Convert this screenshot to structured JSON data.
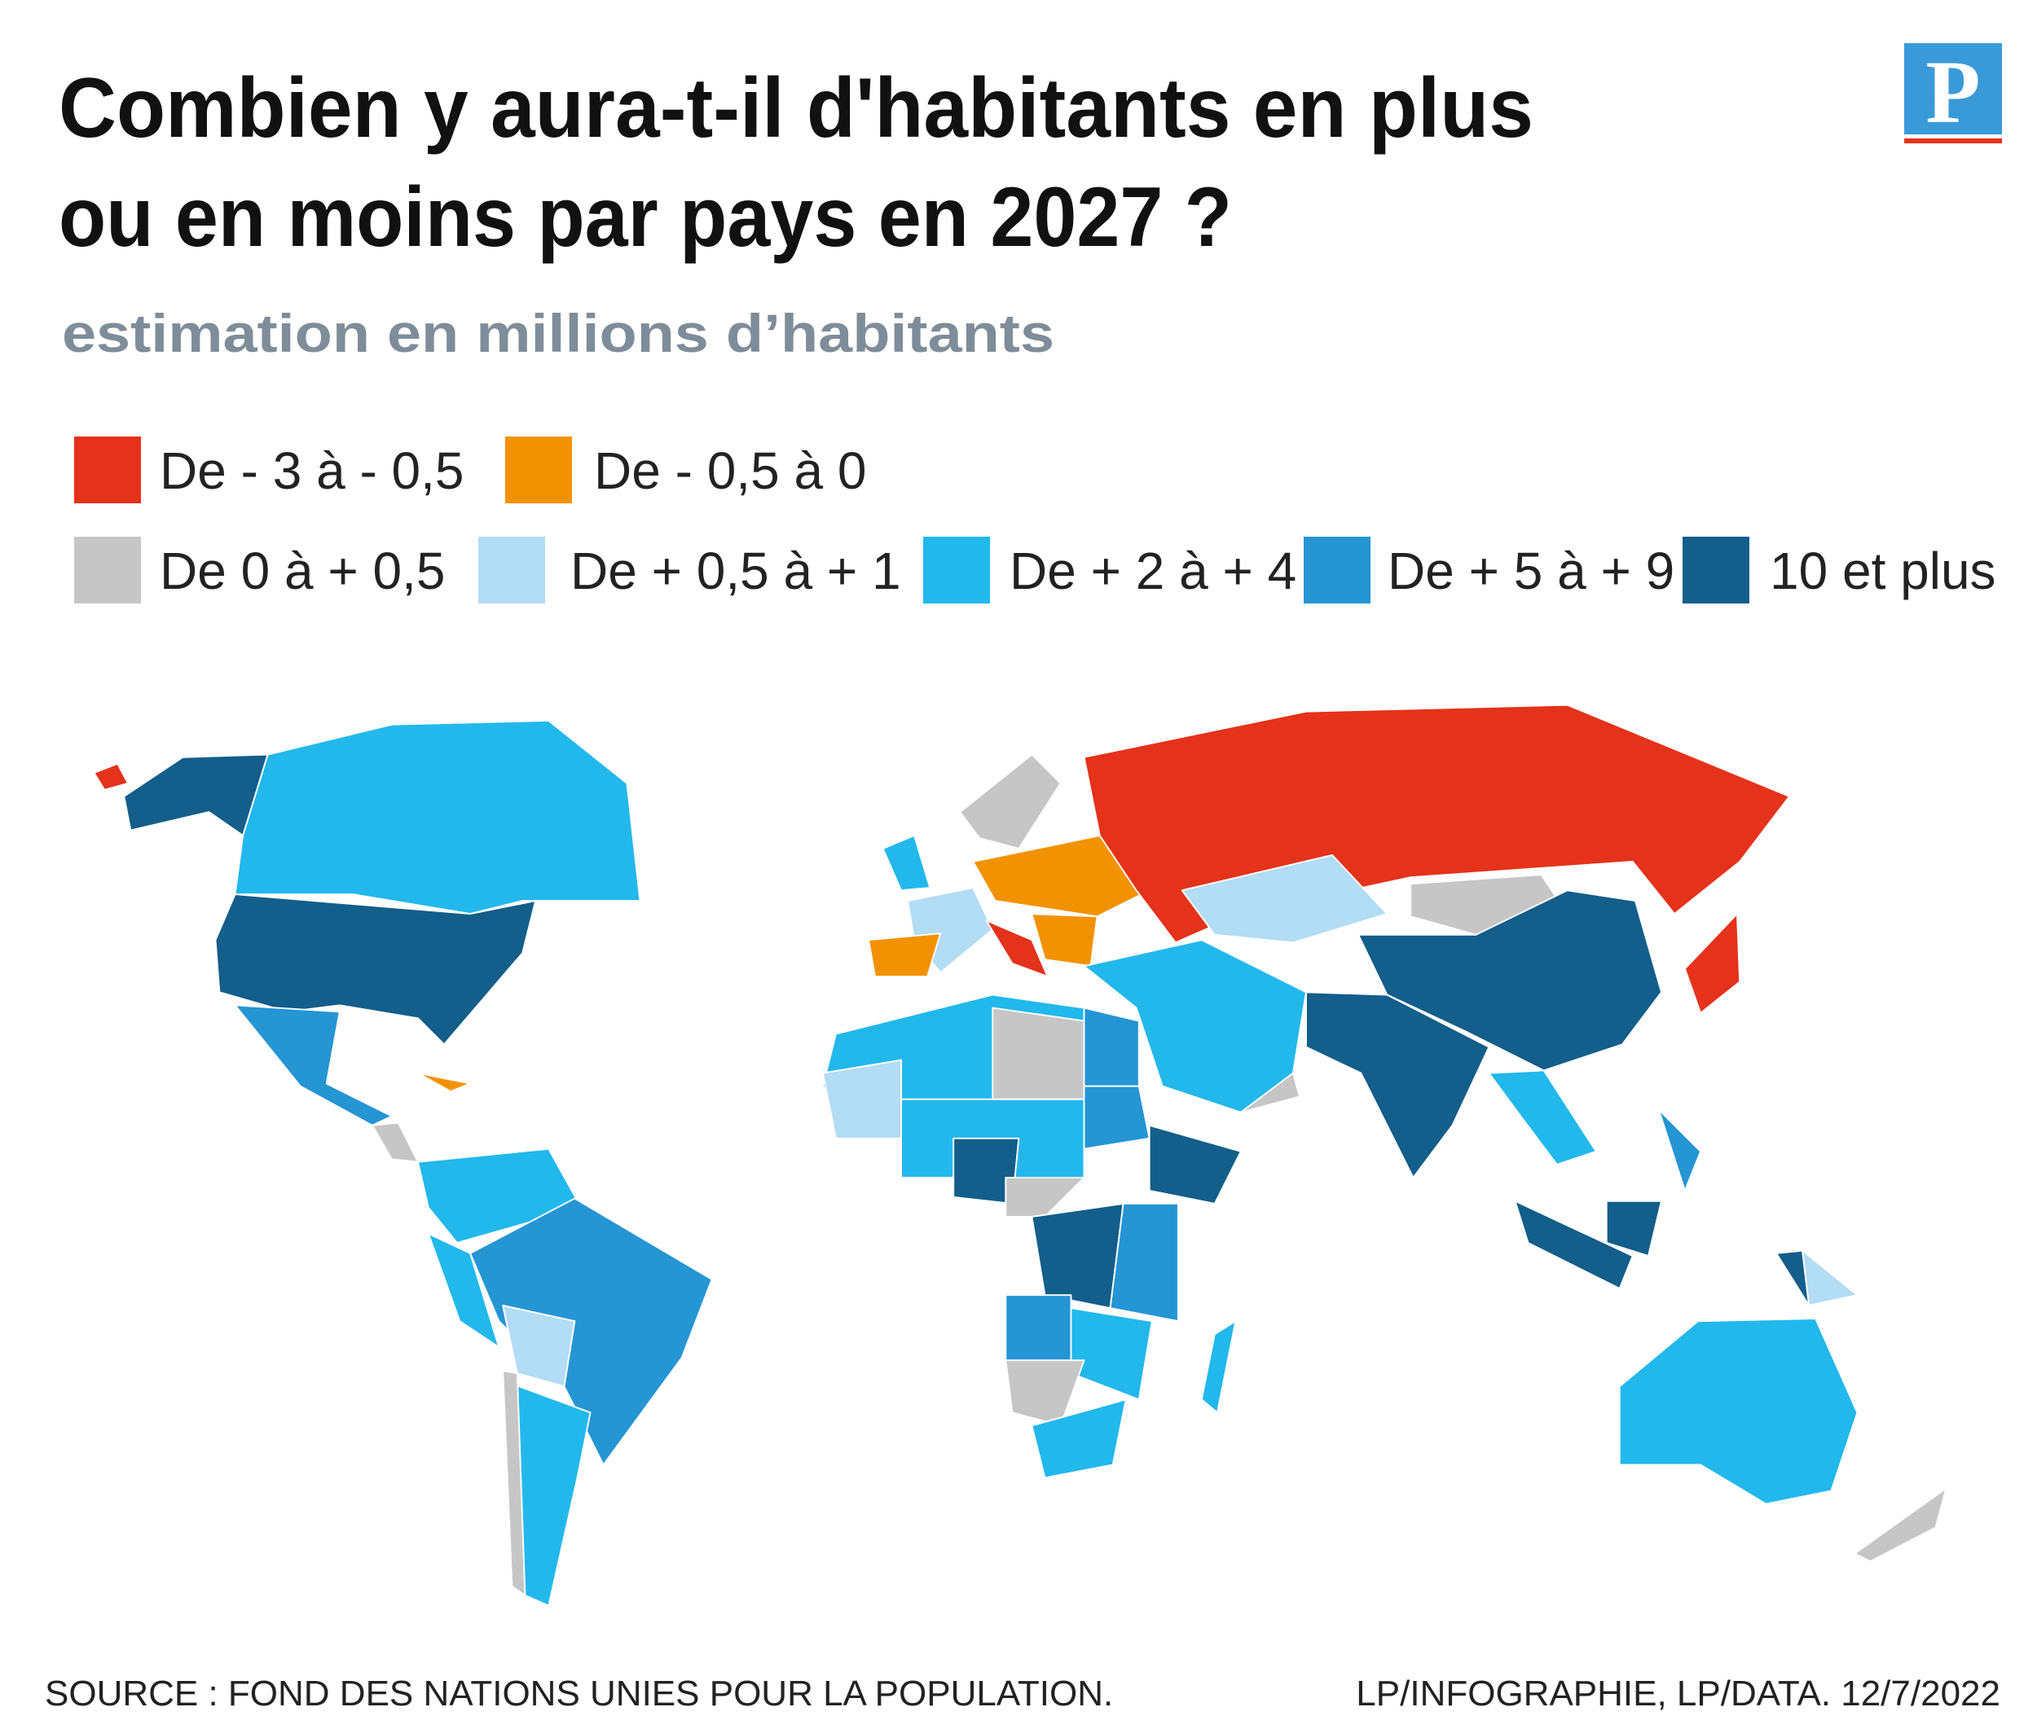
{
  "header": {
    "title_lines": [
      "Combien y aura-t-il d'habitants en plus",
      "ou en moins par pays en 2027 ?"
    ],
    "subtitle": "estimation en millions d’habitants",
    "logo": "P"
  },
  "legend": [
    {
      "label": "De - 3 à - 0,5",
      "color": "#e5321a"
    },
    {
      "label": "De - 0,5 à 0",
      "color": "#f39200"
    },
    {
      "label": "De 0 à + 0,5",
      "color": "#c6c6c6"
    },
    {
      "label": "De + 0,5 à + 1",
      "color": "#b3dcf5"
    },
    {
      "label": "De + 2 à + 4",
      "color": "#22b8ec"
    },
    {
      "label": "De + 5 à + 9",
      "color": "#2595d4"
    },
    {
      "label": "10 et plus",
      "color": "#135e8a"
    }
  ],
  "footer": {
    "source": "SOURCE : FOND DES NATIONS UNIES POUR LA POPULATION.",
    "credit": "LP/INFOGRAPHIE, LP/DATA.  12/7/2022"
  }
}
